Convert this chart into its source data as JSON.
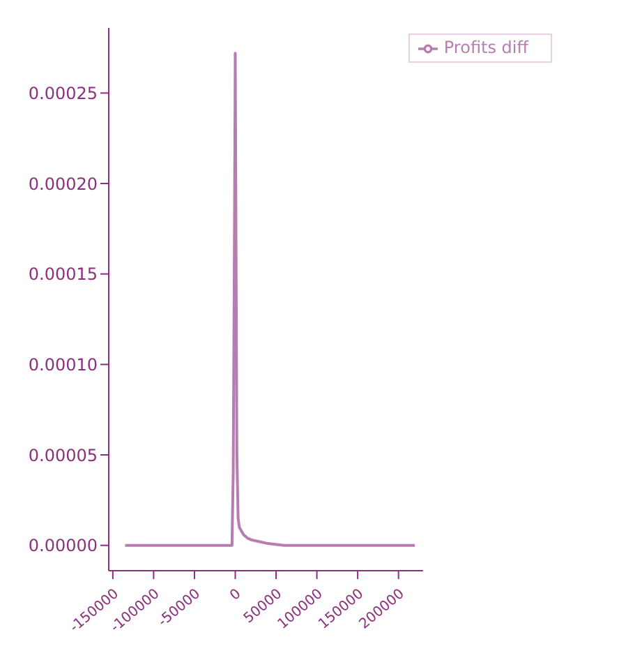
{
  "chart_data": {
    "type": "line",
    "x": [
      -135000,
      -6000,
      -4000,
      -2500,
      -1000,
      0,
      1000,
      2000,
      3500,
      5000,
      7500,
      10000,
      15000,
      20000,
      30000,
      40000,
      60000,
      100000,
      150000,
      220000
    ],
    "series": [
      {
        "name": "Profits diff",
        "color": "#b87db0",
        "values": [
          0,
          0,
          0,
          4e-05,
          0.00017,
          0.000272,
          0.00016,
          5e-05,
          1.5e-05,
          1e-05,
          8e-06,
          6e-06,
          4e-06,
          3e-06,
          2e-06,
          1e-06,
          0,
          0,
          0,
          0
        ]
      }
    ],
    "xlim": [
      -155000,
      230000
    ],
    "xticks": [
      -150000,
      -100000,
      -50000,
      0,
      50000,
      100000,
      150000,
      200000
    ],
    "ylim": [
      -1.4e-05,
      0.000286
    ],
    "yticks": [
      {
        "value": 0,
        "label": "0.00000"
      },
      {
        "value": 5e-05,
        "label": "0.00005"
      },
      {
        "value": 0.0001,
        "label": "0.00010"
      },
      {
        "value": 0.00015,
        "label": "0.00015"
      },
      {
        "value": 0.0002,
        "label": "0.00020"
      },
      {
        "value": 0.00025,
        "label": "0.00025"
      }
    ],
    "legend": "top right",
    "grid": false,
    "marker": "none",
    "line_style": "solid"
  }
}
